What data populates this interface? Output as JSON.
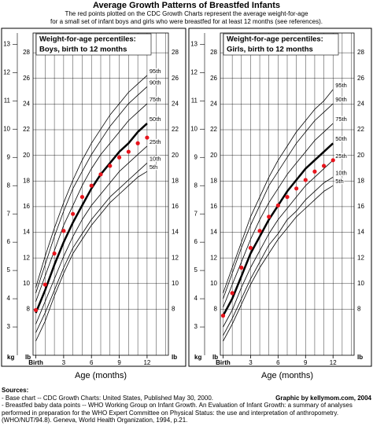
{
  "header": {
    "title": "Average Growth Patterns of Breastfed Infants",
    "subtitle": [
      "The red points plotted on the CDC Growth Charts represent the average weight-for-age",
      "for a small set of infant boys and girls who were breastfed for at least 12 months (see references)."
    ]
  },
  "chart_data": [
    {
      "type": "line",
      "title": [
        "Weight-for-age percentiles:",
        "Boys, birth to 12 months"
      ],
      "xlabel": "Age (months)",
      "ylabel": "kg",
      "y2label": "lb",
      "x": [
        0,
        1,
        2,
        3,
        4,
        5,
        6,
        7,
        8,
        9,
        10,
        11,
        12
      ],
      "xlim": [
        -0.3,
        14.3
      ],
      "xticks": [
        {
          "value": 0,
          "label": "Birth"
        },
        3,
        6,
        9,
        12
      ],
      "minor_xticks": [
        0,
        1,
        2,
        3,
        4,
        5,
        6,
        7,
        8,
        9,
        10,
        11,
        12,
        13,
        14
      ],
      "ylim": [
        2,
        13.4
      ],
      "yticks": [
        3,
        4,
        5,
        6,
        7,
        8,
        9,
        10,
        11,
        12,
        13
      ],
      "y2lim": [
        4.41,
        29.54
      ],
      "y2ticks": [
        8,
        10,
        12,
        14,
        16,
        18,
        20,
        22,
        24,
        26,
        28
      ],
      "grid": true,
      "series": [
        {
          "name": "5th",
          "color": "#000",
          "width": 0.8,
          "values": [
            2.5,
            3.2,
            4.1,
            4.9,
            5.6,
            6.1,
            6.6,
            7.0,
            7.4,
            7.7,
            8.0,
            8.3,
            8.5
          ]
        },
        {
          "name": "10th",
          "color": "#000",
          "width": 0.8,
          "values": [
            2.8,
            3.5,
            4.3,
            5.1,
            5.8,
            6.3,
            6.8,
            7.2,
            7.6,
            7.9,
            8.2,
            8.5,
            8.8
          ]
        },
        {
          "name": "25th",
          "color": "#000",
          "width": 0.8,
          "values": [
            3.1,
            3.9,
            4.7,
            5.5,
            6.2,
            6.8,
            7.3,
            7.7,
            8.1,
            8.5,
            8.8,
            9.1,
            9.4
          ]
        },
        {
          "name": "50th",
          "color": "#000",
          "width": 2.5,
          "values": [
            3.5,
            4.3,
            5.2,
            6.0,
            6.7,
            7.3,
            7.9,
            8.4,
            8.8,
            9.2,
            9.5,
            9.9,
            10.2
          ]
        },
        {
          "name": "75th",
          "color": "#000",
          "width": 0.8,
          "values": [
            3.9,
            4.8,
            5.7,
            6.6,
            7.3,
            8.0,
            8.6,
            9.1,
            9.5,
            9.9,
            10.3,
            10.6,
            10.9
          ]
        },
        {
          "name": "90th",
          "color": "#000",
          "width": 0.8,
          "values": [
            4.2,
            5.2,
            6.2,
            7.1,
            7.9,
            8.5,
            9.1,
            9.6,
            10.1,
            10.5,
            10.9,
            11.2,
            11.5
          ]
        },
        {
          "name": "95th",
          "color": "#000",
          "width": 0.8,
          "values": [
            4.4,
            5.5,
            6.5,
            7.4,
            8.2,
            8.9,
            9.5,
            10.0,
            10.5,
            10.9,
            11.3,
            11.6,
            11.9
          ]
        }
      ],
      "points": {
        "color": "#e8141c",
        "values": [
          3.6,
          4.5,
          5.6,
          6.4,
          7.0,
          7.6,
          8.0,
          8.4,
          8.7,
          9.0,
          9.2,
          9.5,
          9.7
        ]
      }
    },
    {
      "type": "line",
      "title": [
        "Weight-for-age percentiles:",
        "Girls, birth to 12 months"
      ],
      "xlabel": "Age (months)",
      "ylabel": "kg",
      "y2label": "lb",
      "x": [
        0,
        1,
        2,
        3,
        4,
        5,
        6,
        7,
        8,
        9,
        10,
        11,
        12
      ],
      "xlim": [
        -0.3,
        14.3
      ],
      "xticks": [
        {
          "value": 0,
          "label": "Birth"
        },
        3,
        6,
        9,
        12
      ],
      "minor_xticks": [
        0,
        1,
        2,
        3,
        4,
        5,
        6,
        7,
        8,
        9,
        10,
        11,
        12,
        13,
        14
      ],
      "ylim": [
        2,
        13.4
      ],
      "yticks": [
        3,
        4,
        5,
        6,
        7,
        8,
        9,
        10,
        11,
        12,
        13
      ],
      "y2lim": [
        4.41,
        29.54
      ],
      "y2ticks": [
        8,
        10,
        12,
        14,
        16,
        18,
        20,
        22,
        24,
        26,
        28
      ],
      "grid": true,
      "series": [
        {
          "name": "5th",
          "color": "#000",
          "width": 0.8,
          "values": [
            2.5,
            3.1,
            3.8,
            4.5,
            5.1,
            5.6,
            6.1,
            6.5,
            6.9,
            7.2,
            7.5,
            7.8,
            8.0
          ]
        },
        {
          "name": "10th",
          "color": "#000",
          "width": 0.8,
          "values": [
            2.7,
            3.3,
            4.0,
            4.7,
            5.3,
            5.9,
            6.3,
            6.8,
            7.1,
            7.5,
            7.8,
            8.1,
            8.3
          ]
        },
        {
          "name": "25th",
          "color": "#000",
          "width": 0.8,
          "values": [
            3.0,
            3.6,
            4.4,
            5.1,
            5.7,
            6.3,
            6.8,
            7.2,
            7.6,
            8.0,
            8.3,
            8.6,
            8.9
          ]
        },
        {
          "name": "50th",
          "color": "#000",
          "width": 2.5,
          "values": [
            3.4,
            4.0,
            4.8,
            5.6,
            6.2,
            6.8,
            7.3,
            7.8,
            8.2,
            8.6,
            8.9,
            9.2,
            9.5
          ]
        },
        {
          "name": "75th",
          "color": "#000",
          "width": 0.8,
          "values": [
            3.7,
            4.5,
            5.3,
            6.1,
            6.8,
            7.4,
            7.9,
            8.4,
            8.8,
            9.2,
            9.6,
            9.9,
            10.2
          ]
        },
        {
          "name": "90th",
          "color": "#000",
          "width": 0.8,
          "values": [
            4.0,
            4.9,
            5.8,
            6.6,
            7.3,
            8.0,
            8.5,
            9.0,
            9.5,
            9.9,
            10.3,
            10.6,
            10.9
          ]
        },
        {
          "name": "95th",
          "color": "#000",
          "width": 0.8,
          "values": [
            4.2,
            5.1,
            6.0,
            6.9,
            7.6,
            8.3,
            8.9,
            9.4,
            9.9,
            10.3,
            10.7,
            11.0,
            11.4
          ]
        }
      ],
      "points": {
        "color": "#e8141c",
        "values": [
          3.4,
          4.2,
          5.1,
          5.8,
          6.4,
          6.9,
          7.3,
          7.6,
          7.9,
          8.2,
          8.5,
          8.7,
          8.9
        ]
      }
    }
  ],
  "footer": {
    "sources": "Sources:",
    "base": "- Base chart -- CDC Growth Charts: United States, Published May 30, 2000.",
    "credit": "Graphic by kellymom.com, 2004",
    "breastfed": "- Breastfed baby data points -- WHO Working Group on Infant Growth. An Evaluation of Infant Growth: a summary of analyses performed in preparation for the WHO Expert Committee on Physical Status: the use and interpretation of anthropometry. (WHO/NUT/94.8). Geneva, World Health Organization, 1994, p.21."
  }
}
